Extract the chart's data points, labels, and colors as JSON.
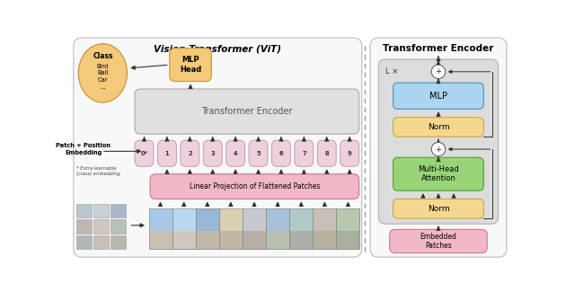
{
  "fig_width": 6.3,
  "fig_height": 3.25,
  "dpi": 100,
  "bg_color": "#ffffff",
  "left_title": "Vision Transformer (ViT)",
  "right_title": "Transformer Encoder",
  "colors": {
    "transformer_encoder_box": "#e0e0e0",
    "mlp_head_box": "#f5c97a",
    "class_ellipse_fill": "#f5c97a",
    "class_ellipse_edge": "#c8963c",
    "linear_proj_box": "#f2b8c6",
    "linear_proj_edge": "#c87890",
    "embedding_tokens": "#ecd0dc",
    "embedding_edge": "#c090a8",
    "mlp_block": "#aad4f0",
    "mlp_edge": "#4890c0",
    "norm_block": "#f5d890",
    "norm_edge": "#c8a840",
    "attention_block": "#98d478",
    "attention_edge": "#50a030",
    "embedded_patches_box": "#f2b8c6",
    "embedded_patches_edge": "#c87890",
    "loop_box_fill": "#dcdcdc",
    "loop_box_edge": "#aaaaaa",
    "panel_fill": "#f8f8f8",
    "panel_edge": "#bbbbbb",
    "arrow_color": "#333333"
  },
  "token_labels": [
    "0*",
    "1",
    "2",
    "3",
    "4",
    "5",
    "6",
    "7",
    "8",
    "9"
  ],
  "patch_note": "Patch + Position\nEmbedding",
  "extra_note": "* Extra learnable\n[class] embedding"
}
